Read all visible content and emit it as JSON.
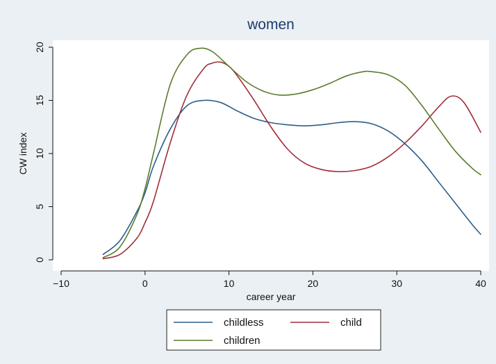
{
  "chart_data": {
    "type": "line",
    "title": "women",
    "xlabel": "career year",
    "ylabel": "CW index",
    "xlim": [
      -12,
      41
    ],
    "ylim": [
      -0.6,
      20.6
    ],
    "xticks": [
      -10,
      0,
      10,
      20,
      30,
      40
    ],
    "yticks": [
      0,
      5,
      10,
      15,
      20
    ],
    "grid": false,
    "legend_position": "bottom",
    "colors": {
      "background": "#eaf0f4",
      "plot_bg": "#ffffff",
      "childless": "#2a5d8a",
      "child": "#9e2e3a",
      "children": "#5c7a2c"
    },
    "series": [
      {
        "name": "childless",
        "x": [
          -5,
          -3,
          -1,
          0,
          1,
          3,
          5,
          7,
          9,
          11,
          13,
          15,
          17,
          19,
          21,
          23,
          25,
          27,
          29,
          31,
          33,
          35,
          37,
          39,
          40
        ],
        "y": [
          0.5,
          1.8,
          4.5,
          6.3,
          8.8,
          12.3,
          14.5,
          15.0,
          14.8,
          14.0,
          13.3,
          12.9,
          12.7,
          12.6,
          12.7,
          12.9,
          13.0,
          12.8,
          12.1,
          10.9,
          9.3,
          7.3,
          5.3,
          3.3,
          2.4
        ]
      },
      {
        "name": "child",
        "x": [
          -5,
          -3,
          -1,
          0,
          1,
          3,
          5,
          7,
          8,
          9,
          10,
          11,
          13,
          15,
          17,
          19,
          21,
          23,
          25,
          27,
          29,
          31,
          33,
          35,
          36.5,
          38,
          40
        ],
        "y": [
          0.1,
          0.5,
          2.0,
          3.5,
          5.5,
          11.0,
          15.5,
          18.0,
          18.5,
          18.6,
          18.2,
          17.3,
          15.0,
          12.5,
          10.4,
          9.1,
          8.5,
          8.3,
          8.4,
          8.8,
          9.7,
          11.0,
          12.6,
          14.4,
          15.4,
          14.8,
          12.0
        ]
      },
      {
        "name": "children",
        "x": [
          -5,
          -3,
          -1,
          0,
          1,
          3,
          5,
          6.5,
          8,
          10,
          12,
          14,
          16,
          18,
          20,
          22,
          24,
          26,
          27,
          29,
          31,
          33,
          35,
          37,
          39,
          40
        ],
        "y": [
          0.2,
          1.2,
          4.2,
          6.7,
          10.0,
          16.5,
          19.3,
          19.9,
          19.6,
          18.2,
          16.8,
          15.9,
          15.5,
          15.6,
          16.0,
          16.6,
          17.3,
          17.7,
          17.7,
          17.4,
          16.4,
          14.5,
          12.3,
          10.2,
          8.6,
          8.0
        ]
      }
    ],
    "legend": [
      {
        "label": "childless",
        "series": "childless"
      },
      {
        "label": "child",
        "series": "child"
      },
      {
        "label": "children",
        "series": "children"
      }
    ]
  }
}
